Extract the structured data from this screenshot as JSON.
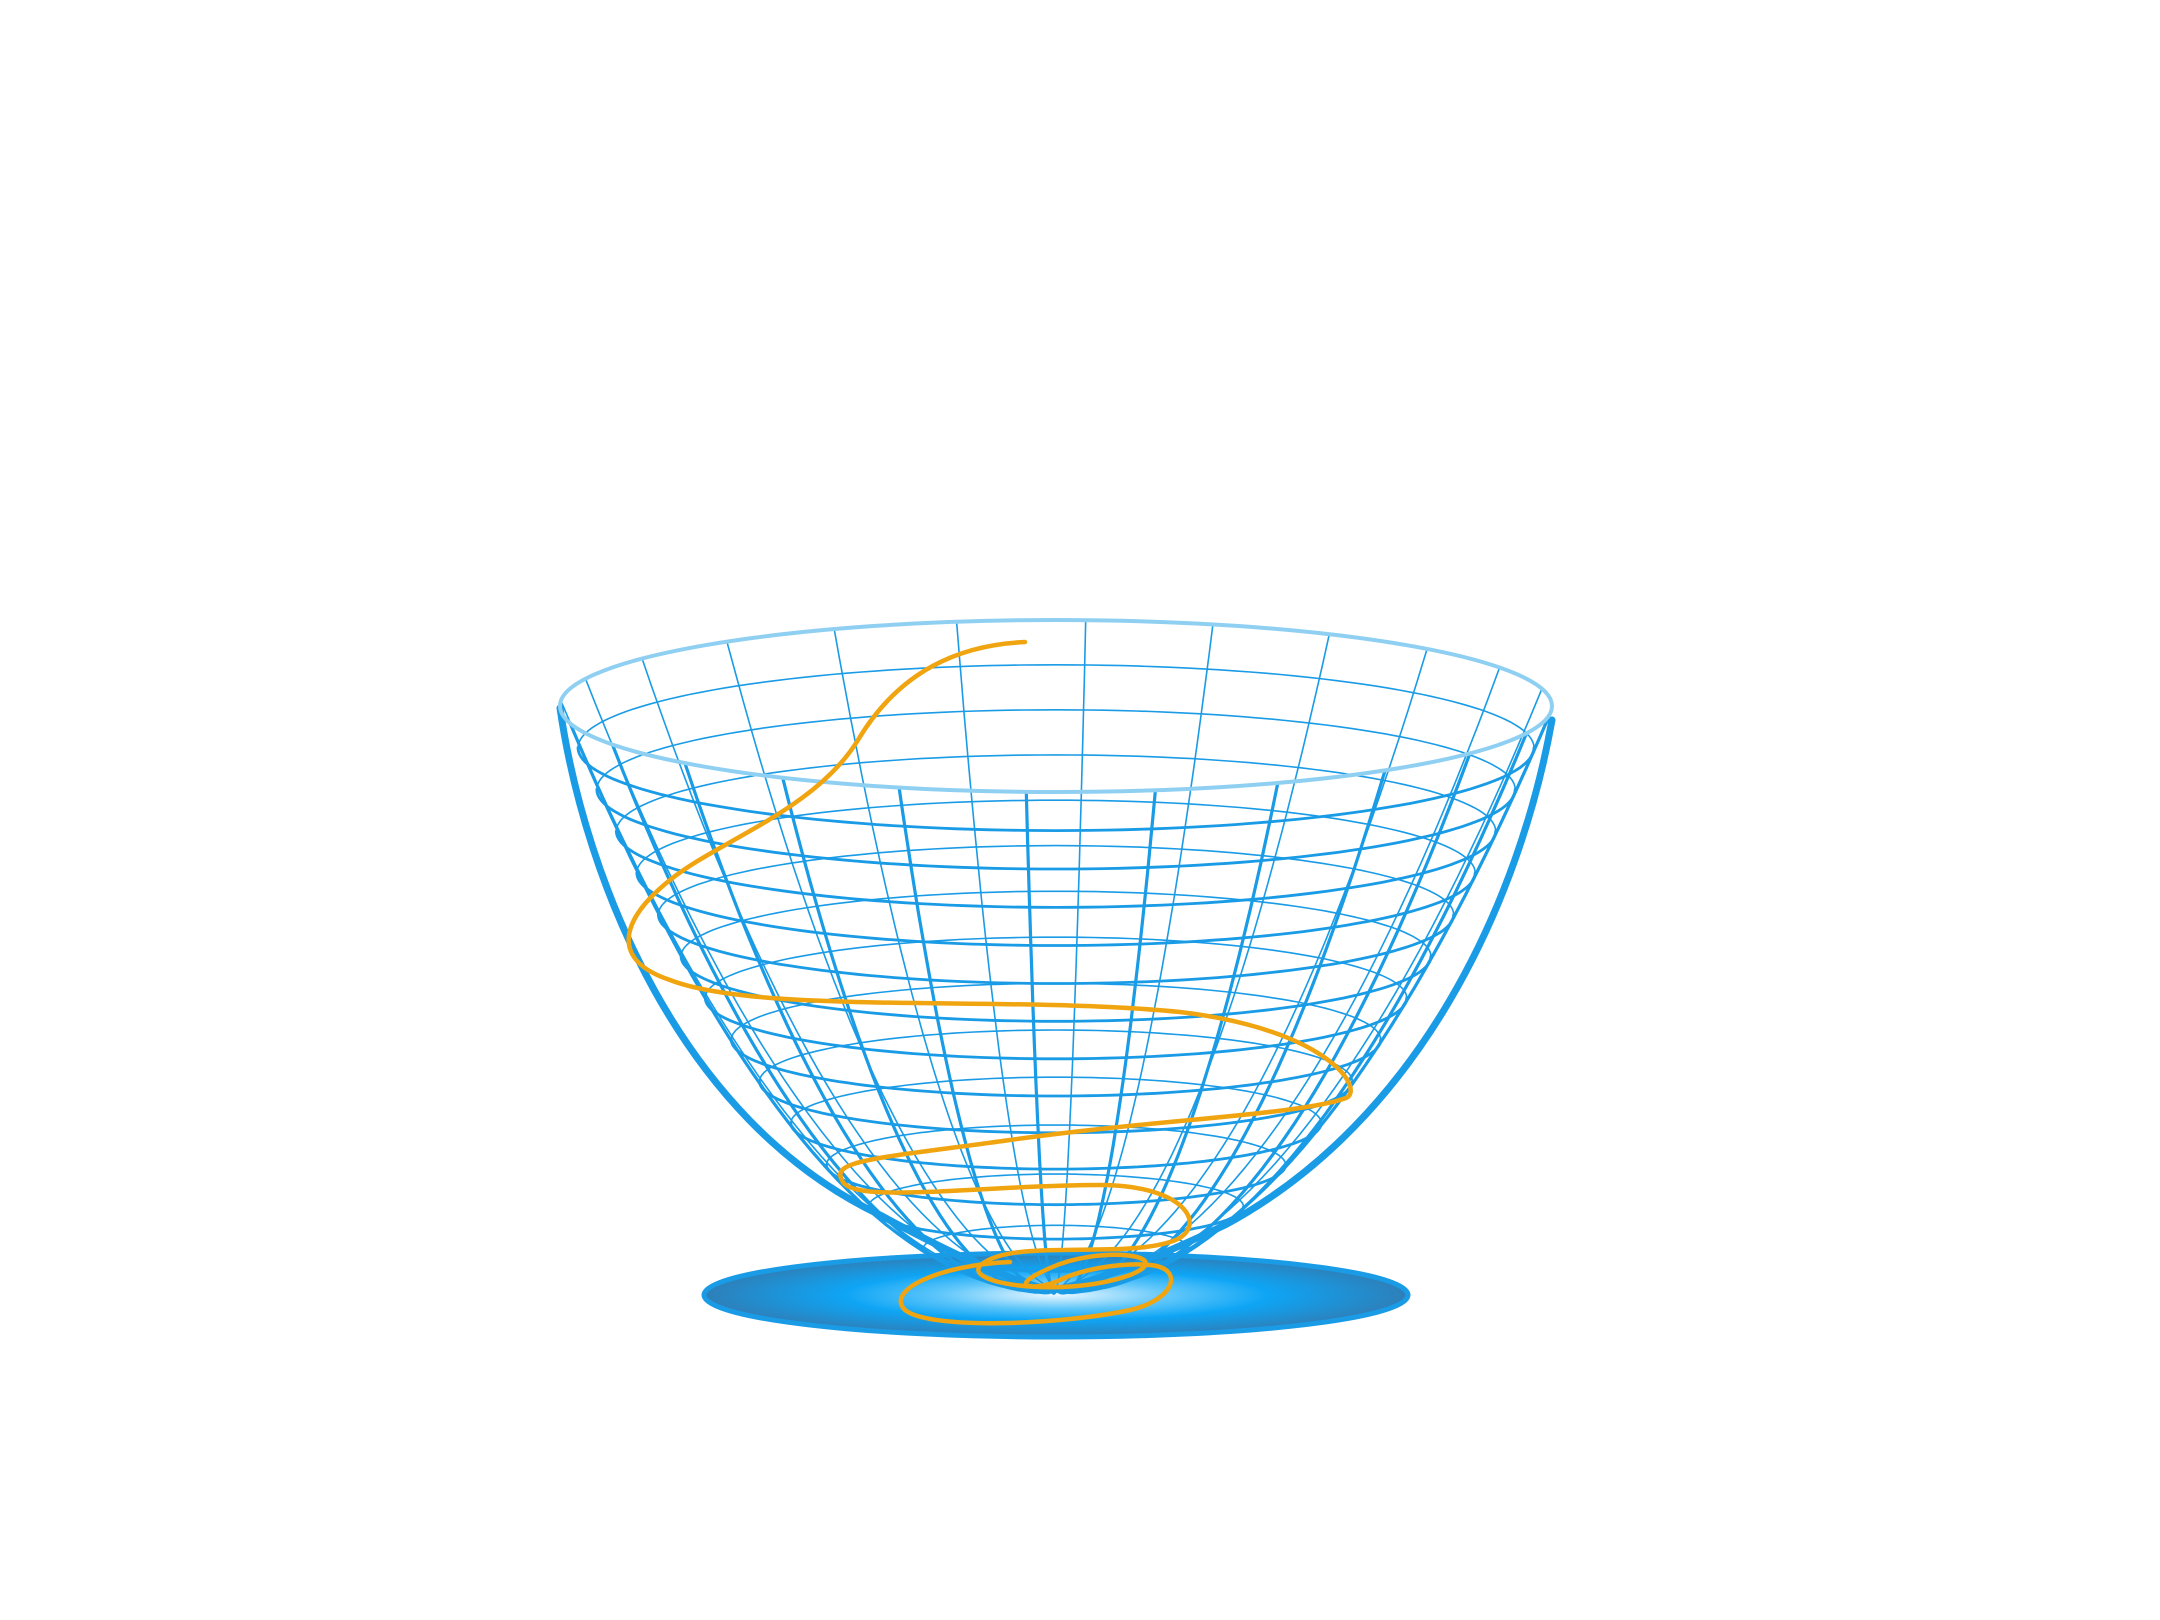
{
  "figure": {
    "colors": {
      "background": "#ffffff",
      "mesh": "#1a9be6",
      "mesh_light": "#8fd0f2",
      "outline": "#1a9be6",
      "path": "#f0a410",
      "shadow_center": "#eaf7ff",
      "shadow_mid": "#0ea5f5",
      "shadow_edge": "#2e7fb8"
    },
    "elements": {
      "surface": "paraboloid-wireframe-bowl",
      "trajectory": "spiral-path-descending-to-bottom",
      "shadow": "radial-gradient-disc-below-bowl"
    }
  }
}
